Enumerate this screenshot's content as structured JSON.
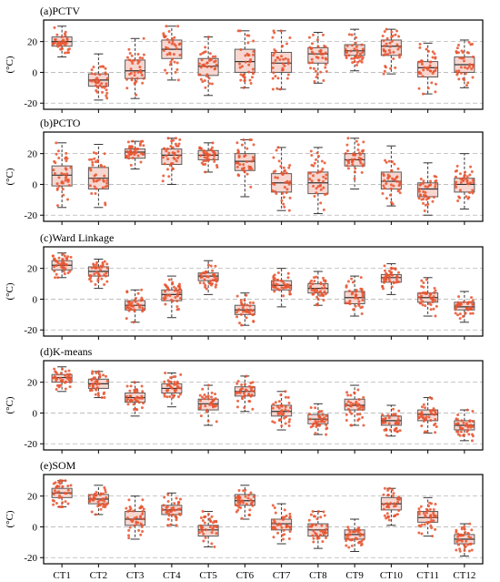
{
  "chart_data": {
    "type": "box",
    "categories": [
      "CT1",
      "CT2",
      "CT3",
      "CT4",
      "CT5",
      "CT6",
      "CT7",
      "CT8",
      "CT9",
      "CT10",
      "CT11",
      "CT12"
    ],
    "ylabel": "(°C)",
    "yticks": [
      -20,
      0,
      20
    ],
    "grid": "horizontal dashed at y ticks",
    "colors": {
      "box_fill": "#f7d6d0",
      "box_edge": "#5a5a5a",
      "median": "#333333",
      "points": "#e8532f",
      "grid": "#b5b5b5"
    },
    "panels": [
      {
        "title": "(a)PCTV",
        "ylim": [
          -24,
          34
        ],
        "boxes": [
          {
            "q1": 17,
            "median": 20,
            "q3": 23,
            "whislo": 10,
            "whishi": 30
          },
          {
            "q1": -9,
            "median": -5,
            "q3": -1,
            "whislo": -18,
            "whishi": 12
          },
          {
            "q1": -4,
            "median": 1,
            "q3": 8,
            "whislo": -17,
            "whishi": 22
          },
          {
            "q1": 9,
            "median": 15,
            "q3": 21,
            "whislo": -5,
            "whishi": 30
          },
          {
            "q1": -2,
            "median": 4,
            "q3": 9,
            "whislo": -15,
            "whishi": 23
          },
          {
            "q1": 0,
            "median": 7,
            "q3": 15,
            "whislo": -10,
            "whishi": 27
          },
          {
            "q1": 0,
            "median": 6,
            "q3": 13,
            "whislo": -11,
            "whishi": 27
          },
          {
            "q1": 6,
            "median": 12,
            "q3": 16,
            "whislo": -7,
            "whishi": 26
          },
          {
            "q1": 11,
            "median": 14,
            "q3": 18,
            "whislo": 1,
            "whishi": 28
          },
          {
            "q1": 11,
            "median": 17,
            "q3": 21,
            "whislo": -1,
            "whishi": 28
          },
          {
            "q1": -3,
            "median": 3,
            "q3": 7,
            "whislo": -14,
            "whishi": 19
          },
          {
            "q1": 0,
            "median": 5,
            "q3": 10,
            "whislo": -10,
            "whishi": 21
          }
        ]
      },
      {
        "title": "(b)PCTO",
        "ylim": [
          -24,
          34
        ],
        "boxes": [
          {
            "q1": -1,
            "median": 6,
            "q3": 12,
            "whislo": -15,
            "whishi": 27
          },
          {
            "q1": -3,
            "median": 4,
            "q3": 11,
            "whislo": -15,
            "whishi": 26
          },
          {
            "q1": 17,
            "median": 21,
            "q3": 23,
            "whislo": 10,
            "whishi": 28
          },
          {
            "q1": 13,
            "median": 19,
            "q3": 23,
            "whislo": 0,
            "whishi": 30
          },
          {
            "q1": 16,
            "median": 19,
            "q3": 22,
            "whislo": 8,
            "whishi": 27
          },
          {
            "q1": 9,
            "median": 15,
            "q3": 20,
            "whislo": -8,
            "whishi": 29
          },
          {
            "q1": -5,
            "median": 1,
            "q3": 7,
            "whislo": -17,
            "whishi": 24
          },
          {
            "q1": -6,
            "median": 1,
            "q3": 8,
            "whislo": -19,
            "whishi": 24
          },
          {
            "q1": 12,
            "median": 16,
            "q3": 20,
            "whislo": -3,
            "whishi": 30
          },
          {
            "q1": -3,
            "median": 2,
            "q3": 8,
            "whislo": -14,
            "whishi": 25
          },
          {
            "q1": -8,
            "median": -3,
            "q3": 1,
            "whislo": -20,
            "whishi": 14
          },
          {
            "q1": -5,
            "median": 0,
            "q3": 4,
            "whislo": -16,
            "whishi": 20
          }
        ]
      },
      {
        "title": "(c)Ward Linkage",
        "ylim": [
          -24,
          34
        ],
        "boxes": [
          {
            "q1": 19,
            "median": 22,
            "q3": 25,
            "whislo": 14,
            "whishi": 30
          },
          {
            "q1": 15,
            "median": 18,
            "q3": 21,
            "whislo": 7,
            "whishi": 26
          },
          {
            "q1": -7,
            "median": -4,
            "q3": -1,
            "whislo": -15,
            "whishi": 6
          },
          {
            "q1": -1,
            "median": 3,
            "q3": 6,
            "whislo": -12,
            "whishi": 15
          },
          {
            "q1": 12,
            "median": 15,
            "q3": 17,
            "whislo": 3,
            "whishi": 25
          },
          {
            "q1": -10,
            "median": -7,
            "q3": -4,
            "whislo": -17,
            "whishi": 4
          },
          {
            "q1": 6,
            "median": 9,
            "q3": 12,
            "whislo": -5,
            "whishi": 20
          },
          {
            "q1": 4,
            "median": 7,
            "q3": 10,
            "whislo": -4,
            "whishi": 18
          },
          {
            "q1": -3,
            "median": 1,
            "q3": 5,
            "whislo": -11,
            "whishi": 15
          },
          {
            "q1": 11,
            "median": 14,
            "q3": 16,
            "whislo": 3,
            "whishi": 23
          },
          {
            "q1": -2,
            "median": 1,
            "q3": 4,
            "whislo": -11,
            "whishi": 14
          },
          {
            "q1": -7,
            "median": -5,
            "q3": -2,
            "whislo": -15,
            "whishi": 5
          }
        ]
      },
      {
        "title": "(d)K-means",
        "ylim": [
          -24,
          34
        ],
        "boxes": [
          {
            "q1": 20,
            "median": 23,
            "q3": 25,
            "whislo": 14,
            "whishi": 30
          },
          {
            "q1": 16,
            "median": 19,
            "q3": 22,
            "whislo": 10,
            "whishi": 27
          },
          {
            "q1": 7,
            "median": 10,
            "q3": 13,
            "whislo": -2,
            "whishi": 20
          },
          {
            "q1": 13,
            "median": 16,
            "q3": 19,
            "whislo": 4,
            "whishi": 26
          },
          {
            "q1": 2,
            "median": 6,
            "q3": 9,
            "whislo": -8,
            "whishi": 18
          },
          {
            "q1": 11,
            "median": 14,
            "q3": 17,
            "whislo": 1,
            "whishi": 24
          },
          {
            "q1": -2,
            "median": 1,
            "q3": 5,
            "whislo": -11,
            "whishi": 14
          },
          {
            "q1": -7,
            "median": -4,
            "q3": -1,
            "whislo": -14,
            "whishi": 6
          },
          {
            "q1": 2,
            "median": 5,
            "q3": 9,
            "whislo": -8,
            "whishi": 18
          },
          {
            "q1": -8,
            "median": -5,
            "q3": -2,
            "whislo": -15,
            "whishi": 5
          },
          {
            "q1": -5,
            "median": -1,
            "q3": 2,
            "whislo": -13,
            "whishi": 10
          },
          {
            "q1": -11,
            "median": -8,
            "q3": -5,
            "whislo": -18,
            "whishi": 2
          }
        ]
      },
      {
        "title": "(e)SOM",
        "ylim": [
          -24,
          34
        ],
        "boxes": [
          {
            "q1": 19,
            "median": 22,
            "q3": 25,
            "whislo": 13,
            "whishi": 30
          },
          {
            "q1": 15,
            "median": 18,
            "q3": 21,
            "whislo": 8,
            "whishi": 27
          },
          {
            "q1": 1,
            "median": 5,
            "q3": 10,
            "whislo": -8,
            "whishi": 20
          },
          {
            "q1": 8,
            "median": 11,
            "q3": 14,
            "whislo": 1,
            "whishi": 22
          },
          {
            "q1": -6,
            "median": -2,
            "q3": 1,
            "whislo": -13,
            "whishi": 10
          },
          {
            "q1": 14,
            "median": 17,
            "q3": 21,
            "whislo": 5,
            "whishi": 27
          },
          {
            "q1": -2,
            "median": 2,
            "q3": 5,
            "whislo": -11,
            "whishi": 15
          },
          {
            "q1": -6,
            "median": -2,
            "q3": 2,
            "whislo": -14,
            "whishi": 10
          },
          {
            "q1": -8,
            "median": -5,
            "q3": -2,
            "whislo": -16,
            "whishi": 5
          },
          {
            "q1": 11,
            "median": 15,
            "q3": 19,
            "whislo": 1,
            "whishi": 25
          },
          {
            "q1": 3,
            "median": 6,
            "q3": 10,
            "whislo": -6,
            "whishi": 19
          },
          {
            "q1": -11,
            "median": -8,
            "q3": -5,
            "whislo": -19,
            "whishi": 2
          }
        ]
      }
    ]
  }
}
